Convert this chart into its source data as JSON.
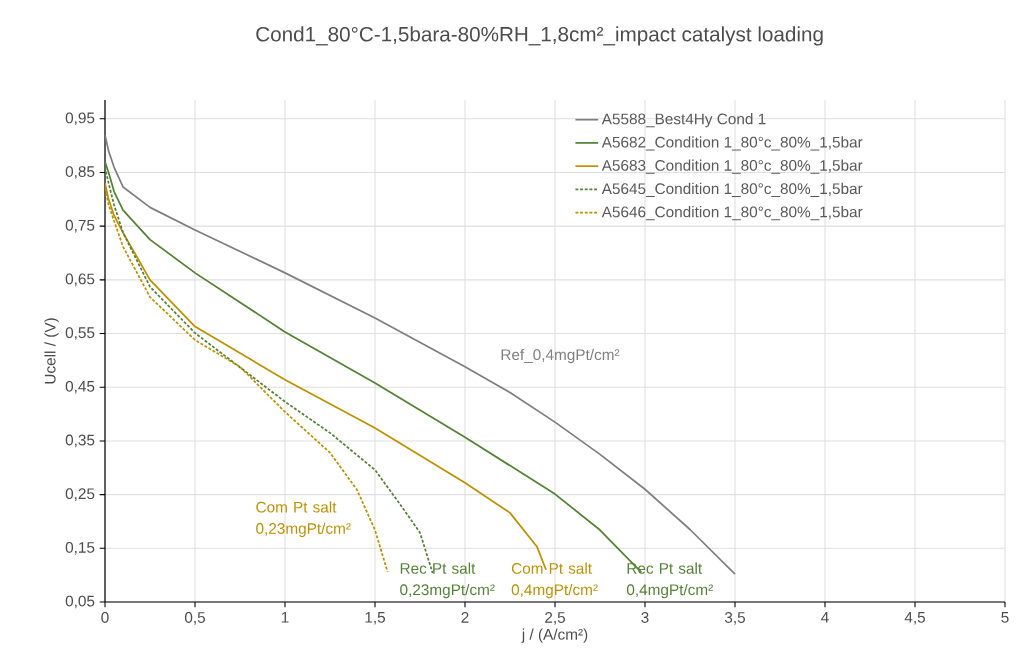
{
  "chart_data": {
    "type": "line",
    "title": "Cond1_80°C-1,5bara-80%RH_1,8cm²_impact catalyst loading",
    "xlabel": "j / (A/cm²)",
    "ylabel": "Ucell / (V)",
    "xlim": [
      0,
      5
    ],
    "ylim": [
      0.05,
      0.985
    ],
    "xticks": [
      0,
      {
        "value": 0.5,
        "label": "0,5"
      },
      1,
      {
        "value": 1.5,
        "label": "1,5"
      },
      2,
      {
        "value": 2.5,
        "label": "2,5"
      },
      3,
      {
        "value": 3.5,
        "label": "3,5"
      },
      4,
      {
        "value": 4.5,
        "label": "4,5"
      },
      5
    ],
    "yticks": [
      {
        "value": 0.05,
        "label": "0,05"
      },
      {
        "value": 0.15,
        "label": "0,15"
      },
      {
        "value": 0.25,
        "label": "0,25"
      },
      {
        "value": 0.35,
        "label": "0,35"
      },
      {
        "value": 0.45,
        "label": "0,45"
      },
      {
        "value": 0.55,
        "label": "0,55"
      },
      {
        "value": 0.65,
        "label": "0,65"
      },
      {
        "value": 0.75,
        "label": "0,75"
      },
      {
        "value": 0.85,
        "label": "0,85"
      },
      {
        "value": 0.95,
        "label": "0,95"
      }
    ],
    "grid": true,
    "legend": "top right",
    "series": [
      {
        "name": "A5588_Best4Hy Cond 1",
        "color": "#7f7f7f",
        "line_style": "solid",
        "x": [
          0,
          0.02,
          0.05,
          0.1,
          0.25,
          0.5,
          1,
          1.5,
          2,
          2.25,
          2.5,
          2.75,
          3,
          3.25,
          3.5
        ],
        "values": [
          0.92,
          0.89,
          0.86,
          0.823,
          0.785,
          0.743,
          0.663,
          0.579,
          0.488,
          0.44,
          0.385,
          0.325,
          0.26,
          0.185,
          0.102
        ]
      },
      {
        "name": "A5682_Condition 1_80°c_80%_1,5bar",
        "color": "#548235",
        "line_style": "solid",
        "x": [
          0,
          0.02,
          0.05,
          0.1,
          0.25,
          0.5,
          1,
          1.5,
          2,
          2.5,
          2.75,
          2.98
        ],
        "values": [
          0.87,
          0.85,
          0.815,
          0.78,
          0.725,
          0.663,
          0.553,
          0.458,
          0.357,
          0.251,
          0.184,
          0.105
        ]
      },
      {
        "name": "A5683_Condition 1_80°c_80%_1,5bar",
        "color": "#bf9000",
        "line_style": "solid",
        "x": [
          0,
          0.02,
          0.05,
          0.1,
          0.25,
          0.5,
          1,
          1.5,
          2,
          2.25,
          2.4,
          2.45
        ],
        "values": [
          0.83,
          0.8,
          0.77,
          0.738,
          0.65,
          0.563,
          0.464,
          0.374,
          0.272,
          0.216,
          0.153,
          0.11
        ]
      },
      {
        "name": "A5645_Condition 1_80°c_80%_1,5bar",
        "color": "#548235",
        "line_style": "dashed",
        "x": [
          0,
          0.02,
          0.05,
          0.1,
          0.25,
          0.5,
          1,
          1.25,
          1.5,
          1.65,
          1.75,
          1.82
        ],
        "values": [
          0.86,
          0.83,
          0.79,
          0.738,
          0.637,
          0.551,
          0.423,
          0.365,
          0.296,
          0.227,
          0.179,
          0.104
        ]
      },
      {
        "name": "A5646_Condition 1_80°c_80%_1,5bar",
        "color": "#bf9000",
        "line_style": "dashed",
        "x": [
          0,
          0.02,
          0.05,
          0.1,
          0.25,
          0.5,
          0.75,
          1,
          1.25,
          1.4,
          1.5,
          1.57
        ],
        "values": [
          0.82,
          0.79,
          0.76,
          0.712,
          0.618,
          0.538,
          0.488,
          0.404,
          0.328,
          0.259,
          0.184,
          0.106
        ]
      }
    ],
    "annotations": [
      "Ref_0,4mgPt/cm²",
      "Com Pt salt 0,23mgPt/cm²",
      "Rec Pt salt 0,23mgPt/cm²",
      "Com Pt salt 0,4mgPt/cm²",
      "Rec Pt salt 0,4mgPt/cm²"
    ]
  }
}
